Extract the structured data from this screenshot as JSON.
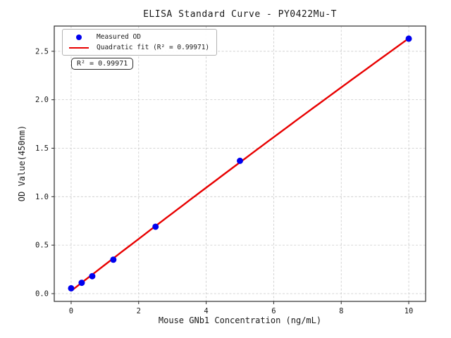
{
  "figure": {
    "background": "#ffffff",
    "frame_color": "#2b2b2b",
    "grid_color": "#c9c9c9",
    "text_color": "#1a1a1a"
  },
  "chart_data": {
    "type": "scatter",
    "title": "ELISA Standard Curve - PY0422Mu-T",
    "xlabel": "Mouse GNb1 Concentration (ng/mL)",
    "ylabel": "OD Value(450nm)",
    "x": [
      0,
      0.3125,
      0.625,
      1.25,
      2.5,
      5,
      10
    ],
    "y": [
      0.055,
      0.112,
      0.18,
      0.35,
      0.69,
      1.37,
      2.63
    ],
    "series": [
      {
        "name": "Measured OD",
        "kind": "scatter",
        "marker": "circle",
        "color": "#0000ee"
      },
      {
        "name": "Quadratic fit (R² = 0.99971)",
        "kind": "line",
        "fit": "quadratic",
        "color": "#e80000"
      }
    ],
    "xlim": [
      -0.5,
      10.5
    ],
    "ylim": [
      -0.08,
      2.76
    ],
    "xticks": [
      0,
      2,
      4,
      6,
      8,
      10
    ],
    "xtick_labels": [
      "0",
      "2",
      "4",
      "6",
      "8",
      "10"
    ],
    "yticks": [
      0.0,
      0.5,
      1.0,
      1.5,
      2.0,
      2.5
    ],
    "ytick_labels": [
      "0.0",
      "0.5",
      "1.0",
      "1.5",
      "2.0",
      "2.5"
    ],
    "grid": true,
    "grid_style": "dashed",
    "legend_position": "upper left",
    "annotation": "R² = 0.99971",
    "r_squared": 0.99971
  }
}
